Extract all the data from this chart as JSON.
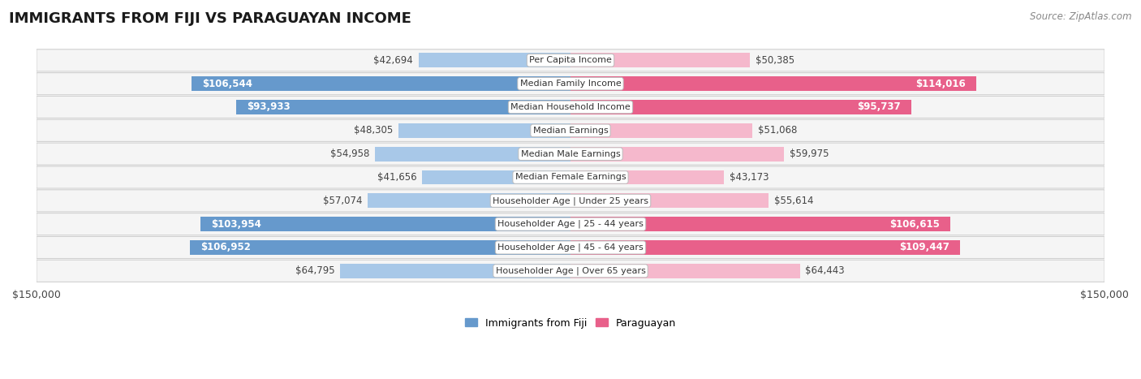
{
  "title": "IMMIGRANTS FROM FIJI VS PARAGUAYAN INCOME",
  "source": "Source: ZipAtlas.com",
  "categories": [
    "Per Capita Income",
    "Median Family Income",
    "Median Household Income",
    "Median Earnings",
    "Median Male Earnings",
    "Median Female Earnings",
    "Householder Age | Under 25 years",
    "Householder Age | 25 - 44 years",
    "Householder Age | 45 - 64 years",
    "Householder Age | Over 65 years"
  ],
  "fiji_values": [
    42694,
    106544,
    93933,
    48305,
    54958,
    41656,
    57074,
    103954,
    106952,
    64795
  ],
  "paraguayan_values": [
    50385,
    114016,
    95737,
    51068,
    59975,
    43173,
    55614,
    106615,
    109447,
    64443
  ],
  "fiji_labels": [
    "$42,694",
    "$106,544",
    "$93,933",
    "$48,305",
    "$54,958",
    "$41,656",
    "$57,074",
    "$103,954",
    "$106,952",
    "$64,795"
  ],
  "paraguayan_labels": [
    "$50,385",
    "$114,016",
    "$95,737",
    "$51,068",
    "$59,975",
    "$43,173",
    "$55,614",
    "$106,615",
    "$109,447",
    "$64,443"
  ],
  "fiji_color_light": "#a8c8e8",
  "fiji_color_dark": "#6699cc",
  "paraguayan_color_light": "#f5b8cc",
  "paraguayan_color_dark": "#e8608a",
  "fiji_threshold": 70000,
  "paraguayan_threshold": 70000,
  "max_value": 150000,
  "background_color": "#ffffff",
  "fiji_legend": "Immigrants from Fiji",
  "paraguayan_legend": "Paraguayan",
  "label_fontsize": 8.5,
  "cat_fontsize": 8.0,
  "title_fontsize": 13,
  "source_fontsize": 8.5,
  "legend_fontsize": 9,
  "xtick_fontsize": 9
}
